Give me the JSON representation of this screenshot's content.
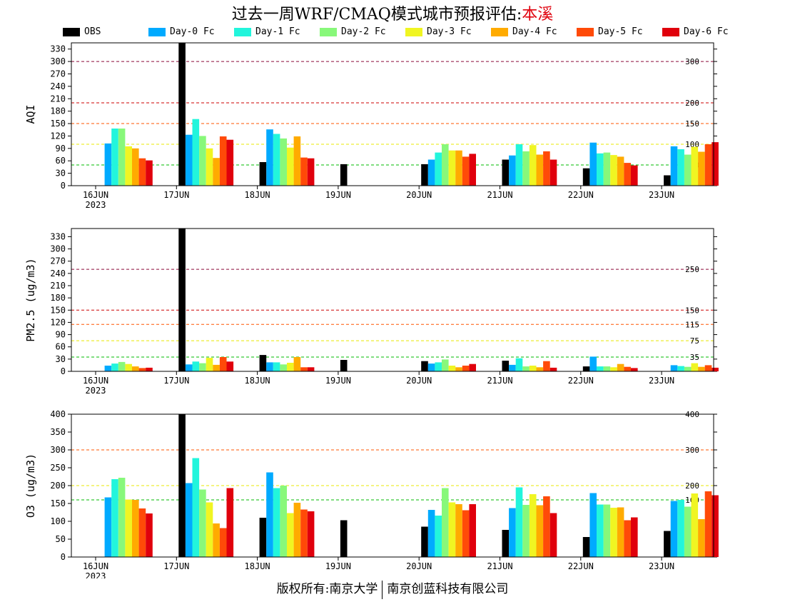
{
  "page": {
    "title_prefix": "过去一周WRF/CMAQ模式城市预报评估:",
    "city": "本溪",
    "footer_left": "版权所有:南京大学",
    "footer_right": "南京创蓝科技有限公司"
  },
  "legend": [
    {
      "label": "OBS",
      "color": "#000000"
    },
    {
      "label": "Day-0 Fc",
      "color": "#00aaff"
    },
    {
      "label": "Day-1 Fc",
      "color": "#22f5dc"
    },
    {
      "label": "Day-2 Fc",
      "color": "#88f87a"
    },
    {
      "label": "Day-3 Fc",
      "color": "#f0f522"
    },
    {
      "label": "Day-4 Fc",
      "color": "#ffab00"
    },
    {
      "label": "Day-5 Fc",
      "color": "#ff4a08"
    },
    {
      "label": "Day-6 Fc",
      "color": "#e0000c"
    }
  ],
  "chart_data": [
    {
      "type": "bar",
      "ylabel": "AQI",
      "ylim": [
        0,
        345
      ],
      "yticks": [
        0,
        30,
        60,
        90,
        120,
        150,
        180,
        210,
        240,
        270,
        300,
        330
      ],
      "categories": [
        "16JUN",
        "17JUN",
        "18JUN",
        "19JUN",
        "20JUN",
        "21JUN",
        "22JUN",
        "23JUN"
      ],
      "year_label": "2023",
      "thresholds": [
        {
          "value": 300,
          "label": "300",
          "color": "#8b0a3a"
        },
        {
          "value": 200,
          "label": "200",
          "color": "#cc0000"
        },
        {
          "value": 150,
          "label": "150",
          "color": "#ff5500"
        },
        {
          "value": 100,
          "label": "100",
          "color": "#e8e800"
        },
        {
          "value": 50,
          "label": "50",
          "color": "#00bb00"
        }
      ],
      "series": [
        {
          "name": "OBS",
          "values": [
            null,
            350,
            57,
            52,
            52,
            63,
            42,
            25
          ]
        },
        {
          "name": "Day-0 Fc",
          "values": [
            102,
            123,
            136,
            null,
            63,
            73,
            104,
            95
          ]
        },
        {
          "name": "Day-1 Fc",
          "values": [
            138,
            161,
            125,
            null,
            80,
            100,
            78,
            88
          ]
        },
        {
          "name": "Day-2 Fc",
          "values": [
            138,
            120,
            114,
            null,
            100,
            83,
            80,
            75
          ]
        },
        {
          "name": "Day-3 Fc",
          "values": [
            95,
            90,
            92,
            null,
            85,
            98,
            74,
            94
          ]
        },
        {
          "name": "Day-4 Fc",
          "values": [
            90,
            67,
            119,
            null,
            85,
            75,
            70,
            82
          ]
        },
        {
          "name": "Day-5 Fc",
          "values": [
            66,
            119,
            68,
            null,
            70,
            83,
            55,
            100
          ]
        },
        {
          "name": "Day-6 Fc",
          "values": [
            61,
            111,
            66,
            null,
            77,
            63,
            49,
            105
          ]
        }
      ]
    },
    {
      "type": "bar",
      "ylabel": "PM2.5 (ug/m3)",
      "ylim": [
        0,
        350
      ],
      "yticks": [
        0,
        30,
        60,
        90,
        120,
        150,
        180,
        210,
        240,
        270,
        300,
        330
      ],
      "categories": [
        "16JUN",
        "17JUN",
        "18JUN",
        "19JUN",
        "20JUN",
        "21JUN",
        "22JUN",
        "23JUN"
      ],
      "year_label": "2023",
      "thresholds": [
        {
          "value": 250,
          "label": "250",
          "color": "#8b0a3a"
        },
        {
          "value": 150,
          "label": "150",
          "color": "#cc0000"
        },
        {
          "value": 115,
          "label": "115",
          "color": "#ff5500"
        },
        {
          "value": 75,
          "label": "75",
          "color": "#e8e800"
        },
        {
          "value": 35,
          "label": "35",
          "color": "#00bb00"
        }
      ],
      "series": [
        {
          "name": "OBS",
          "values": [
            null,
            350,
            40,
            28,
            25,
            26,
            12,
            null
          ]
        },
        {
          "name": "Day-0 Fc",
          "values": [
            14,
            17,
            22,
            null,
            19,
            16,
            36,
            15
          ]
        },
        {
          "name": "Day-1 Fc",
          "values": [
            19,
            24,
            22,
            null,
            22,
            32,
            12,
            13
          ]
        },
        {
          "name": "Day-2 Fc",
          "values": [
            23,
            20,
            17,
            null,
            29,
            12,
            12,
            11
          ]
        },
        {
          "name": "Day-3 Fc",
          "values": [
            18,
            33,
            21,
            null,
            14,
            14,
            10,
            20
          ]
        },
        {
          "name": "Day-4 Fc",
          "values": [
            12,
            16,
            35,
            null,
            10,
            10,
            18,
            11
          ]
        },
        {
          "name": "Day-5 Fc",
          "values": [
            8,
            35,
            10,
            null,
            14,
            25,
            11,
            15
          ]
        },
        {
          "name": "Day-6 Fc",
          "values": [
            9,
            24,
            10,
            null,
            18,
            9,
            8,
            9
          ]
        }
      ]
    },
    {
      "type": "bar",
      "ylabel": "O3 (ug/m3)",
      "ylim": [
        0,
        400
      ],
      "yticks": [
        0,
        50,
        100,
        150,
        200,
        250,
        300,
        350,
        400
      ],
      "categories": [
        "16JUN",
        "17JUN",
        "18JUN",
        "19JUN",
        "20JUN",
        "21JUN",
        "22JUN",
        "23JUN"
      ],
      "year_label": "2023",
      "thresholds": [
        {
          "value": 400,
          "label": "400",
          "color": "#cc0000"
        },
        {
          "value": 300,
          "label": "300",
          "color": "#ff5500"
        },
        {
          "value": 200,
          "label": "200",
          "color": "#e8e800"
        },
        {
          "value": 160,
          "label": "160",
          "color": "#00bb00"
        }
      ],
      "series": [
        {
          "name": "OBS",
          "values": [
            null,
            400,
            110,
            103,
            85,
            76,
            56,
            73
          ]
        },
        {
          "name": "Day-0 Fc",
          "values": [
            167,
            207,
            237,
            null,
            132,
            137,
            179,
            157
          ]
        },
        {
          "name": "Day-1 Fc",
          "values": [
            218,
            277,
            193,
            null,
            116,
            195,
            147,
            160
          ]
        },
        {
          "name": "Day-2 Fc",
          "values": [
            222,
            189,
            200,
            null,
            193,
            146,
            147,
            141
          ]
        },
        {
          "name": "Day-3 Fc",
          "values": [
            161,
            153,
            123,
            null,
            153,
            176,
            138,
            178
          ]
        },
        {
          "name": "Day-4 Fc",
          "values": [
            160,
            94,
            152,
            null,
            148,
            145,
            139,
            106
          ]
        },
        {
          "name": "Day-5 Fc",
          "values": [
            136,
            81,
            133,
            null,
            131,
            170,
            103,
            184
          ]
        },
        {
          "name": "Day-6 Fc",
          "values": [
            122,
            193,
            128,
            null,
            148,
            123,
            111,
            173
          ]
        }
      ]
    }
  ]
}
